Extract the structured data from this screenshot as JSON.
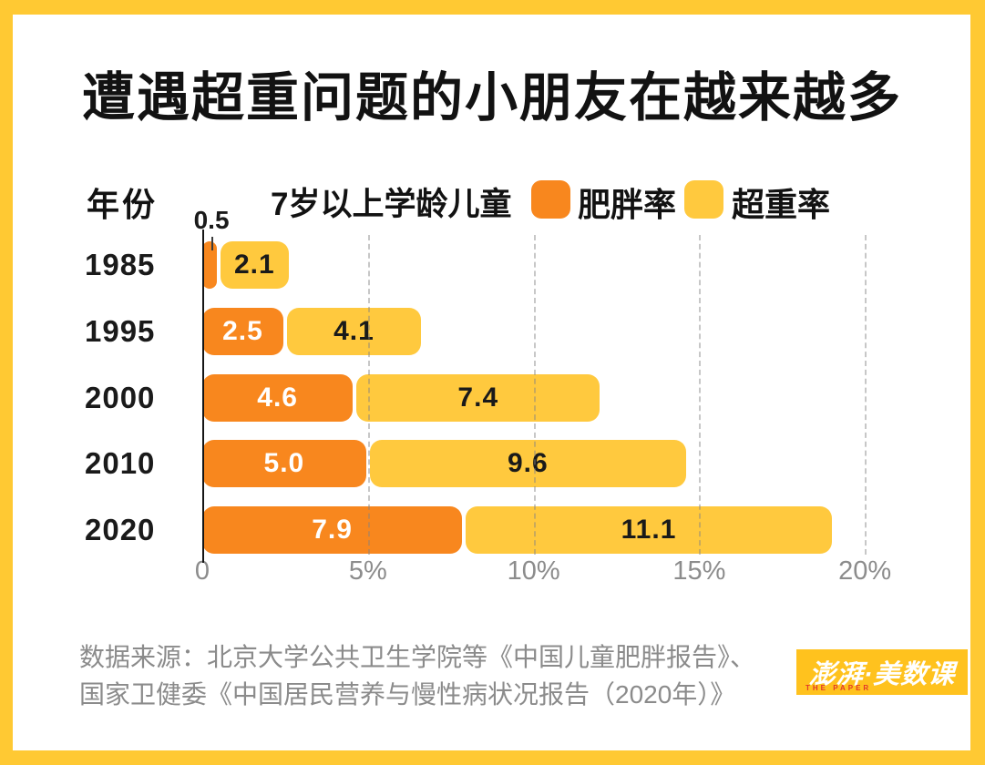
{
  "title": "遭遇超重问题的小朋友在越来越多",
  "legend": {
    "ylabel": "年份",
    "group_label": "7岁以上学龄儿童"
  },
  "chart_data": {
    "type": "bar",
    "orientation": "horizontal",
    "stacked": true,
    "title": "遭遇超重问题的小朋友在越来越多",
    "group_label": "7岁以上学龄儿童",
    "ylabel": "年份",
    "categories": [
      "1985",
      "1995",
      "2000",
      "2010",
      "2020"
    ],
    "series": [
      {
        "name": "肥胖率",
        "color": "#F8871E",
        "label_color": "#FFFFFF",
        "values": [
          0.5,
          2.5,
          4.6,
          5.0,
          7.9
        ],
        "labels": [
          "0.5",
          "2.5",
          "4.6",
          "5.0",
          "7.9"
        ]
      },
      {
        "name": "超重率",
        "color": "#FFC93E",
        "label_color": "#1A1A1A",
        "values": [
          2.1,
          4.1,
          7.4,
          9.6,
          11.1
        ],
        "labels": [
          "2.1",
          "4.1",
          "7.4",
          "9.6",
          "11.1"
        ]
      }
    ],
    "x_ticks": [
      {
        "label": "0",
        "value": 0
      },
      {
        "label": "5%",
        "value": 5
      },
      {
        "label": "10%",
        "value": 10
      },
      {
        "label": "15%",
        "value": 15
      },
      {
        "label": "20%",
        "value": 20
      }
    ],
    "xlim": [
      0,
      20
    ],
    "grid": "dashed-vertical",
    "legend_position": "top"
  },
  "source": {
    "line1": "数据来源：北京大学公共卫生学院等《中国儿童肥胖报告》、",
    "line2": "国家卫健委《中国居民营养与慢性病状况报告（2020年）》"
  },
  "logo": {
    "text": "澎湃·美数课",
    "subtext": "THE PAPER",
    "bg": "#FFC21E",
    "text_color": "#FFFFFF",
    "subtext_color": "#E2382B"
  },
  "colors": {
    "frame": "#FFC933",
    "canvas": "#FFFFFF",
    "obesity": "#F8871E",
    "overweight": "#FFC93E",
    "axis": "#151515",
    "grid": "#828282",
    "tick_label": "#8C8C8C",
    "source_text": "#8B8B8B"
  }
}
